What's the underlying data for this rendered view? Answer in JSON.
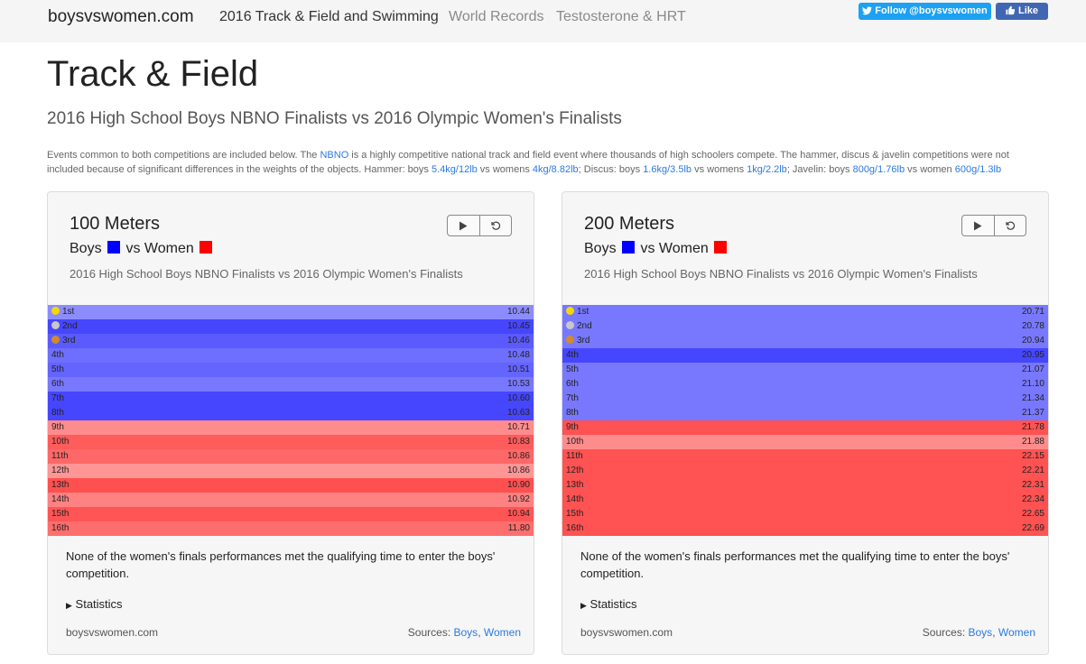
{
  "nav": {
    "brand": "boysvswomen.com",
    "links": [
      "2016 Track & Field and Swimming",
      "World Records",
      "Testosterone & HRT"
    ],
    "twitter_label": "Follow @boysvswomen",
    "fb_label": "Like"
  },
  "page": {
    "title": "Track & Field",
    "subtitle": "2016 High School Boys NBNO Finalists vs 2016 Olympic Women's Finalists",
    "intro": {
      "p1": "Events common to both competitions are included below. The ",
      "nbno": "NBNO",
      "p2": " is a highly competitive national track and field event where thousands of high schoolers compete. The hammer, discus & javelin competitions were not included because of significant differences in the weights of the objects. Hammer: boys ",
      "hammer_boys": "5.4kg/12lb",
      "p3": " vs womens ",
      "hammer_women": "4kg/8.82lb",
      "p4": "; Discus: boys ",
      "discus_boys": "1.6kg/3.5lb",
      "p5": " vs womens ",
      "discus_women": "1kg/2.2lb",
      "p6": "; Javelin: boys ",
      "javelin_boys": "800g/1.76lb",
      "p7": " vs women ",
      "javelin_women": "600g/1.3lb"
    }
  },
  "colors": {
    "boys": "#0000ff",
    "women": "#ff0000",
    "gold": "#f5d800",
    "silver": "#c8c8c8",
    "bronze": "#d28a2c"
  },
  "cards": [
    {
      "title": "100 Meters",
      "legend_boys": "Boys",
      "legend_vs": "vs Women",
      "subtitle": "2016 High School Boys NBNO Finalists vs 2016 Olympic Women's Finalists",
      "rows": [
        {
          "place": "1st",
          "value": "10.44",
          "group": "boys",
          "shade": "#8c8cff"
        },
        {
          "place": "2nd",
          "value": "10.45",
          "group": "boys",
          "shade": "#4646ff"
        },
        {
          "place": "3rd",
          "value": "10.46",
          "group": "boys",
          "shade": "#5a5aff"
        },
        {
          "place": "4th",
          "value": "10.48",
          "group": "boys",
          "shade": "#6e6eff"
        },
        {
          "place": "5th",
          "value": "10.51",
          "group": "boys",
          "shade": "#6464ff"
        },
        {
          "place": "6th",
          "value": "10.53",
          "group": "boys",
          "shade": "#7878ff"
        },
        {
          "place": "7th",
          "value": "10.60",
          "group": "boys",
          "shade": "#4646ff"
        },
        {
          "place": "8th",
          "value": "10.63",
          "group": "boys",
          "shade": "#4646ff"
        },
        {
          "place": "9th",
          "value": "10.71",
          "group": "women",
          "shade": "#ff8c8c"
        },
        {
          "place": "10th",
          "value": "10.83",
          "group": "women",
          "shade": "#ff5c5c"
        },
        {
          "place": "11th",
          "value": "10.86",
          "group": "women",
          "shade": "#ff6868"
        },
        {
          "place": "12th",
          "value": "10.86",
          "group": "women",
          "shade": "#ff9696"
        },
        {
          "place": "13th",
          "value": "10.90",
          "group": "women",
          "shade": "#ff5050"
        },
        {
          "place": "14th",
          "value": "10.92",
          "group": "women",
          "shade": "#ff8282"
        },
        {
          "place": "15th",
          "value": "10.94",
          "group": "women",
          "shade": "#ff5555"
        },
        {
          "place": "16th",
          "value": "11.80",
          "group": "women",
          "shade": "#ff6e6e"
        }
      ],
      "note": "None of the women's finals performances met the qualifying time to enter the boys' competition.",
      "stats_label": "Statistics",
      "footer_site": "boysvswomen.com",
      "sources_label": "Sources:",
      "source_boys": "Boys",
      "source_women": "Women"
    },
    {
      "title": "200 Meters",
      "legend_boys": "Boys",
      "legend_vs": "vs Women",
      "subtitle": "2016 High School Boys NBNO Finalists vs 2016 Olympic Women's Finalists",
      "rows": [
        {
          "place": "1st",
          "value": "20.71",
          "group": "boys",
          "shade": "#7878ff"
        },
        {
          "place": "2nd",
          "value": "20.78",
          "group": "boys",
          "shade": "#7878ff"
        },
        {
          "place": "3rd",
          "value": "20.94",
          "group": "boys",
          "shade": "#7878ff"
        },
        {
          "place": "4th",
          "value": "20.95",
          "group": "boys",
          "shade": "#4646ff"
        },
        {
          "place": "5th",
          "value": "21.07",
          "group": "boys",
          "shade": "#7878ff"
        },
        {
          "place": "6th",
          "value": "21.10",
          "group": "boys",
          "shade": "#7878ff"
        },
        {
          "place": "7th",
          "value": "21.34",
          "group": "boys",
          "shade": "#7878ff"
        },
        {
          "place": "8th",
          "value": "21.37",
          "group": "boys",
          "shade": "#7878ff"
        },
        {
          "place": "9th",
          "value": "21.78",
          "group": "women",
          "shade": "#ff5252"
        },
        {
          "place": "10th",
          "value": "21.88",
          "group": "women",
          "shade": "#ff8c8c"
        },
        {
          "place": "11th",
          "value": "22.15",
          "group": "women",
          "shade": "#ff5252"
        },
        {
          "place": "12th",
          "value": "22.21",
          "group": "women",
          "shade": "#ff5252"
        },
        {
          "place": "13th",
          "value": "22.31",
          "group": "women",
          "shade": "#ff5252"
        },
        {
          "place": "14th",
          "value": "22.34",
          "group": "women",
          "shade": "#ff5252"
        },
        {
          "place": "15th",
          "value": "22.65",
          "group": "women",
          "shade": "#ff5252"
        },
        {
          "place": "16th",
          "value": "22.69",
          "group": "women",
          "shade": "#ff5252"
        }
      ],
      "note": "None of the women's finals performances met the qualifying time to enter the boys' competition.",
      "stats_label": "Statistics",
      "footer_site": "boysvswomen.com",
      "sources_label": "Sources:",
      "source_boys": "Boys",
      "source_women": "Women"
    }
  ]
}
